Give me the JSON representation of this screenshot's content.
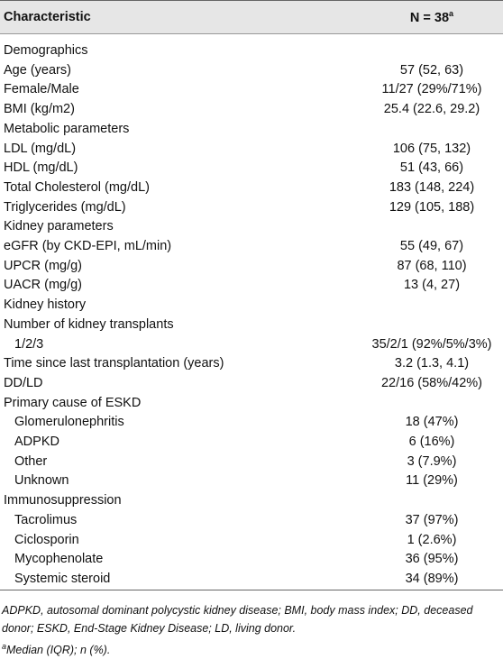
{
  "table": {
    "header": {
      "characteristic": "Characteristic",
      "n": "N = 38",
      "n_note": "a"
    },
    "rows": [
      {
        "label": "Demographics",
        "value": null
      },
      {
        "label": "Age (years)",
        "value": "57 (52, 63)"
      },
      {
        "label": "Female/Male",
        "value": "11/27 (29%/71%)"
      },
      {
        "label": "BMI (kg/m2)",
        "value": "25.4 (22.6, 29.2)"
      },
      {
        "label": "Metabolic parameters",
        "value": null
      },
      {
        "label": "LDL (mg/dL)",
        "value": "106 (75, 132)"
      },
      {
        "label": "HDL (mg/dL)",
        "value": "51 (43, 66)"
      },
      {
        "label": "Total Cholesterol (mg/dL)",
        "value": "183 (148, 224)"
      },
      {
        "label": "Triglycerides (mg/dL)",
        "value": "129 (105, 188)"
      },
      {
        "label": "Kidney parameters",
        "value": null
      },
      {
        "label": "eGFR (by CKD-EPI, mL/min)",
        "value": "55 (49, 67)"
      },
      {
        "label": "UPCR (mg/g)",
        "value": "87 (68, 110)"
      },
      {
        "label": "UACR (mg/g)",
        "value": "13 (4, 27)"
      },
      {
        "label": "Kidney history",
        "value": null
      },
      {
        "label": "Number of kidney transplants",
        "value": null
      },
      {
        "label": "1/2/3",
        "value": "35/2/1 (92%/5%/3%)",
        "indent": 1
      },
      {
        "label": "Time since last transplantation (years)",
        "value": "3.2 (1.3, 4.1)"
      },
      {
        "label": "DD/LD",
        "value": "22/16 (58%/42%)"
      },
      {
        "label": "Primary cause of ESKD",
        "value": null
      },
      {
        "label": "Glomerulonephritis",
        "value": "18 (47%)",
        "indent": 1
      },
      {
        "label": "ADPKD",
        "value": "6 (16%)",
        "indent": 1
      },
      {
        "label": "Other",
        "value": "3 (7.9%)",
        "indent": 1
      },
      {
        "label": "Unknown",
        "value": "11 (29%)",
        "indent": 1
      },
      {
        "label": "Immunosuppression",
        "value": null
      },
      {
        "label": "Tacrolimus",
        "value": "37 (97%)",
        "indent": 1
      },
      {
        "label": "Ciclosporin",
        "value": "1 (2.6%)",
        "indent": 1
      },
      {
        "label": "Mycophenolate",
        "value": "36 (95%)",
        "indent": 1
      },
      {
        "label": "Systemic steroid",
        "value": "34 (89%)",
        "indent": 1
      }
    ],
    "footnotes": {
      "abbreviations": "ADPKD, autosomal dominant polycystic kidney disease; BMI, body mass index; DD, deceased donor; ESKD, End-Stage Kidney Disease; LD, living donor.",
      "note_mark": "a",
      "note": "Median (IQR); n (%)."
    }
  }
}
